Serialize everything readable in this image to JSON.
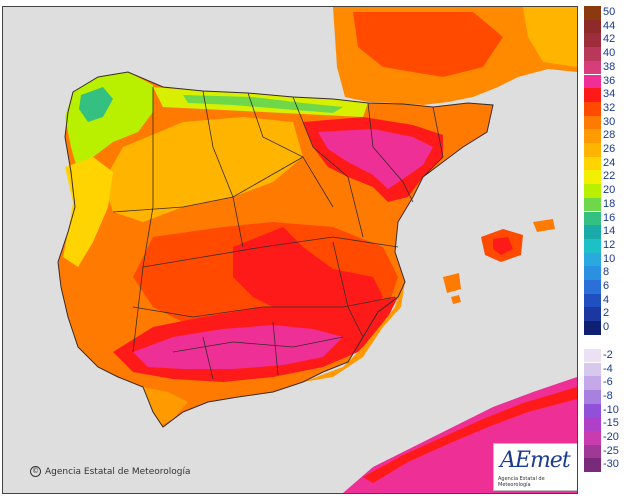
{
  "footer": {
    "copyright_symbol": "©",
    "copyright_text": "Agencia Estatal de Meteorología",
    "logo_name": "AEmet",
    "logo_subtitle": "Agencia Estatal de Meteorología"
  },
  "legend": {
    "positive": [
      {
        "label": "50",
        "color": "#8b3a0f"
      },
      {
        "label": "44",
        "color": "#8e2a2a"
      },
      {
        "label": "42",
        "color": "#9e2d3c"
      },
      {
        "label": "40",
        "color": "#b8385a"
      },
      {
        "label": "38",
        "color": "#d63d7a"
      },
      {
        "label": "36",
        "color": "#ee2f96"
      },
      {
        "label": "34",
        "color": "#ff1a1a"
      },
      {
        "label": "32",
        "color": "#ff4a00"
      },
      {
        "label": "30",
        "color": "#ff7a00"
      },
      {
        "label": "28",
        "color": "#ff9a00"
      },
      {
        "label": "26",
        "color": "#ffb400"
      },
      {
        "label": "24",
        "color": "#ffd400"
      },
      {
        "label": "22",
        "color": "#f2f000"
      },
      {
        "label": "20",
        "color": "#b8f000"
      },
      {
        "label": "18",
        "color": "#6ed84a"
      },
      {
        "label": "16",
        "color": "#34c080"
      },
      {
        "label": "14",
        "color": "#1aaaa8"
      },
      {
        "label": "12",
        "color": "#1ec0c8"
      },
      {
        "label": "10",
        "color": "#2aa8e0"
      },
      {
        "label": "8",
        "color": "#2a90e0"
      },
      {
        "label": "6",
        "color": "#2a70d8"
      },
      {
        "label": "4",
        "color": "#2050c0"
      },
      {
        "label": "2",
        "color": "#1a38a0"
      },
      {
        "label": "0",
        "color": "#102070"
      }
    ],
    "negative": [
      {
        "label": "-2",
        "color": "#ece0f4"
      },
      {
        "label": "-4",
        "color": "#d8c8ee"
      },
      {
        "label": "-6",
        "color": "#c4a8e8"
      },
      {
        "label": "-8",
        "color": "#a880e0"
      },
      {
        "label": "-10",
        "color": "#9050d8"
      },
      {
        "label": "-15",
        "color": "#b040c8"
      },
      {
        "label": "-20",
        "color": "#c83cb0"
      },
      {
        "label": "-25",
        "color": "#a03896"
      },
      {
        "label": "-30",
        "color": "#7a2a7a"
      }
    ]
  },
  "map": {
    "sea_color": "#dedede",
    "border_color": "#3a2a2a",
    "temperature_colors": {
      "hot": "#ff1a1a",
      "very_hot": "#ee2f96",
      "warm": "#ff7a00",
      "mild": "#ffb400",
      "cool": "#b8f000",
      "cold": "#1aaaa8"
    }
  }
}
